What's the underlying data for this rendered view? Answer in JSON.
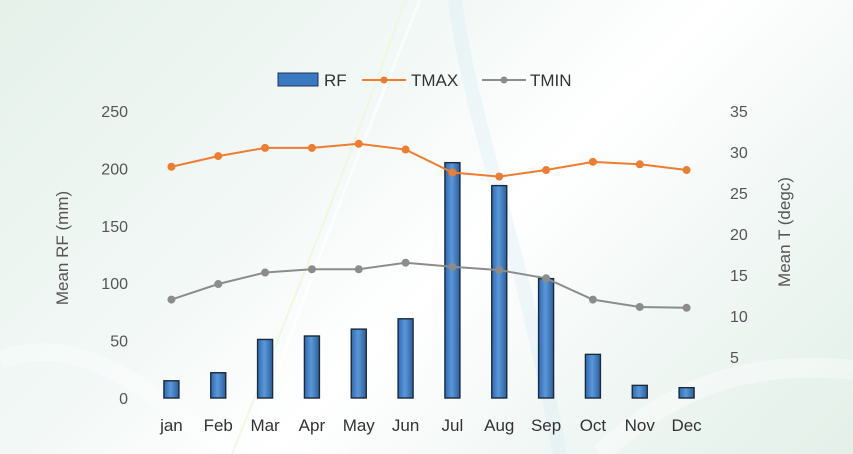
{
  "chart_data": {
    "type": "bar+line",
    "categories": [
      "jan",
      "Feb",
      "Mar",
      "Apr",
      "May",
      "Jun",
      "Jul",
      "Aug",
      "Sep",
      "Oct",
      "Nov",
      "Dec"
    ],
    "series": [
      {
        "name": "RF",
        "type": "bar",
        "axis": "left",
        "color": "#3a78c2",
        "values": [
          15,
          22,
          51,
          54,
          60,
          69,
          205,
          185,
          104,
          38,
          11,
          9
        ]
      },
      {
        "name": "TMAX",
        "type": "line",
        "axis": "right",
        "color": "#ed7d31",
        "values": [
          28.2,
          29.5,
          30.5,
          30.5,
          31.0,
          30.3,
          27.5,
          27.0,
          27.8,
          28.8,
          28.5,
          27.8
        ]
      },
      {
        "name": "TMIN",
        "type": "line",
        "axis": "right",
        "color": "#8c8c8c",
        "values": [
          12.0,
          13.9,
          15.3,
          15.7,
          15.7,
          16.5,
          16.0,
          15.6,
          14.6,
          12.0,
          11.1,
          11.0
        ]
      }
    ],
    "ylabel": "Mean RF (mm)",
    "y2label": "Mean T (degc)",
    "ylim": [
      0,
      250
    ],
    "y2lim": [
      0,
      35
    ],
    "yticks": [
      "0",
      "50",
      "100",
      "150",
      "200",
      "250"
    ],
    "y2ticks": [
      "5",
      "10",
      "15",
      "20",
      "25",
      "30",
      "35"
    ],
    "legend_position": "top-center",
    "grid": false
  }
}
